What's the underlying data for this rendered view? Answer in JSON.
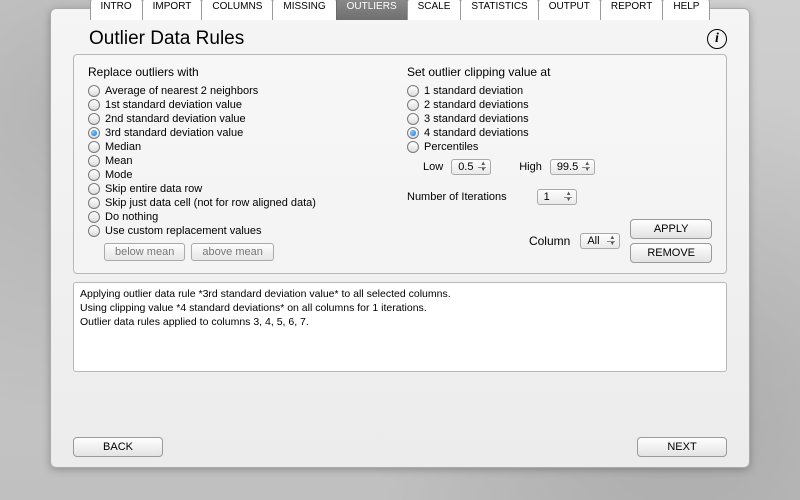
{
  "tabs": {
    "items": [
      "INTRO",
      "IMPORT",
      "COLUMNS",
      "MISSING",
      "OUTLIERS",
      "SCALE",
      "STATISTICS",
      "OUTPUT",
      "REPORT",
      "HELP"
    ],
    "activeIndex": 4
  },
  "page": {
    "title": "Outlier Data Rules"
  },
  "left": {
    "heading": "Replace outliers with",
    "options": [
      "Average of nearest 2 neighbors",
      "1st standard deviation value",
      "2nd standard deviation value",
      "3rd standard deviation value",
      "Median",
      "Mean",
      "Mode",
      "Skip entire data row",
      "Skip just data cell (not for row aligned data)",
      "Do nothing",
      "Use custom replacement values"
    ],
    "selectedIndex": 3,
    "belowMeanLabel": "below mean",
    "aboveMeanLabel": "above mean"
  },
  "right": {
    "heading": "Set outlier clipping value at",
    "options": [
      "1 standard deviation",
      "2 standard deviations",
      "3 standard deviations",
      "4 standard deviations",
      "Percentiles"
    ],
    "selectedIndex": 3,
    "lowLabel": "Low",
    "lowValue": "0.5",
    "highLabel": "High",
    "highValue": "99.5",
    "iterationsLabel": "Number of Iterations",
    "iterationsValue": "1",
    "columnLabel": "Column",
    "columnValue": "All",
    "applyLabel": "APPLY",
    "removeLabel": "REMOVE"
  },
  "log": {
    "text": "Applying outlier data rule *3rd standard deviation value* to all selected columns.\nUsing clipping value *4 standard deviations* on all columns for 1 iterations.\nOutlier data rules applied to columns 3, 4, 5, 6, 7."
  },
  "footer": {
    "backLabel": "BACK",
    "nextLabel": "NEXT"
  },
  "colors": {
    "panel_bg": "#f0f0f0",
    "border": "#b0b0b0",
    "accent_radio": "#1a6fd6"
  }
}
